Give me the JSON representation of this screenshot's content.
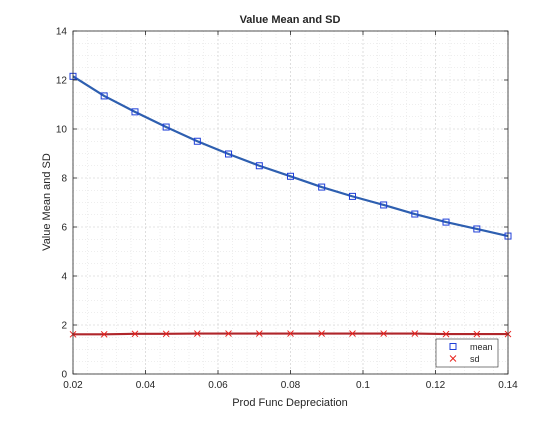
{
  "chart_data": {
    "type": "line",
    "title": "Value Mean and SD",
    "xlabel": "Prod Func Depreciation",
    "ylabel": "Value Mean and SD",
    "xlim": [
      0.02,
      0.14
    ],
    "ylim": [
      0,
      14
    ],
    "xticks": [
      0.02,
      0.04,
      0.06,
      0.08,
      0.1,
      0.12,
      0.14
    ],
    "xtick_labels": [
      "0.02",
      "0.04",
      "0.06",
      "0.08",
      "0.1",
      "0.12",
      "0.14"
    ],
    "yticks": [
      0,
      2,
      4,
      6,
      8,
      10,
      12,
      14
    ],
    "ytick_labels": [
      "0",
      "2",
      "4",
      "6",
      "8",
      "10",
      "12",
      "14"
    ],
    "grid": true,
    "minor_grid": true,
    "legend_position": "bottom-right",
    "x": [
      0.02,
      0.0286,
      0.0371,
      0.0457,
      0.0543,
      0.0629,
      0.0714,
      0.08,
      0.0886,
      0.0971,
      0.1057,
      0.1143,
      0.1229,
      0.1314,
      0.14
    ],
    "series": [
      {
        "name": "mean",
        "marker": "square",
        "marker_color": "#1f3fd8",
        "line_color": "#2e5fb0",
        "values": [
          12.15,
          11.35,
          10.7,
          10.08,
          9.5,
          8.98,
          8.5,
          8.07,
          7.63,
          7.25,
          6.9,
          6.53,
          6.2,
          5.92,
          5.63
        ]
      },
      {
        "name": "sd",
        "marker": "x",
        "marker_color": "#e8201c",
        "line_color": "#b0262b",
        "values": [
          1.62,
          1.62,
          1.64,
          1.64,
          1.65,
          1.65,
          1.65,
          1.65,
          1.65,
          1.65,
          1.65,
          1.65,
          1.63,
          1.63,
          1.63
        ]
      }
    ]
  }
}
